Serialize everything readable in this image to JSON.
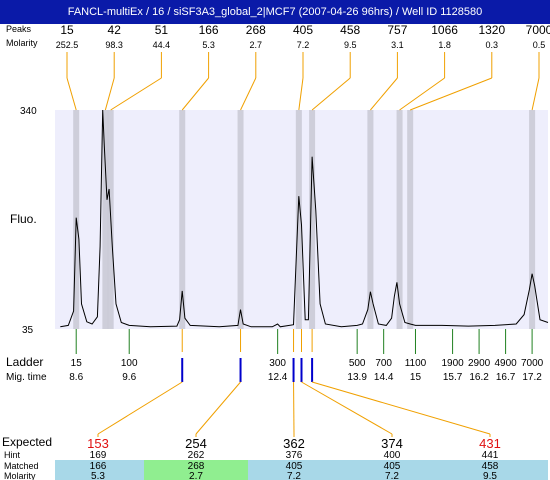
{
  "title": "FANCL-multiEx / 16 / siSF3A3_global_2|MCF7 (2007-04-26 96hrs) / Well ID 1128580",
  "labels": {
    "peaks": "Peaks",
    "molarity": "Molarity",
    "fluo": "Fluo.",
    "ladder": "Ladder",
    "mig_time": "Mig. time",
    "expected": "Expected",
    "hint": "Hint",
    "matched": "Matched",
    "molarity_bottom": "Molarity"
  },
  "colors": {
    "title_bg": "#0a1aa8",
    "plot_bg": "#eeeefc",
    "band": "#c8c8d4",
    "orange": "#f0a000",
    "green": "#208020",
    "blue": "#0000cc",
    "red": "#e01010",
    "table_blue": "#a8d8e8",
    "table_green": "#90ee90"
  },
  "chart_data": {
    "type": "line",
    "ylabel": "Fluo.",
    "ylim": [
      35,
      340
    ],
    "y_ticks": [
      35,
      340
    ],
    "top_peaks": [
      {
        "size": "15",
        "molarity": "252.5",
        "time": 8.6
      },
      {
        "size": "42",
        "molarity": "98.3",
        "time": 9.15
      },
      {
        "size": "51",
        "molarity": "44.4",
        "time": 9.25
      },
      {
        "size": "166",
        "molarity": "5.3",
        "time": 10.6
      },
      {
        "size": "268",
        "molarity": "2.7",
        "time": 11.7
      },
      {
        "size": "405",
        "molarity": "7.2",
        "time": 12.8
      },
      {
        "size": "458",
        "molarity": "9.5",
        "time": 13.05
      },
      {
        "size": "757",
        "molarity": "3.1",
        "time": 14.15
      },
      {
        "size": "1066",
        "molarity": "1.8",
        "time": 14.7
      },
      {
        "size": "1320",
        "molarity": "0.3",
        "time": 14.9
      },
      {
        "size": "7000",
        "molarity": "0.5",
        "time": 17.2
      }
    ],
    "ladder": [
      {
        "size": "15",
        "time": 8.6
      },
      {
        "size": "100",
        "time": 9.6
      },
      {
        "size": "300",
        "time": 12.4
      },
      {
        "size": "500",
        "time": 13.9
      },
      {
        "size": "700",
        "time": 14.4
      },
      {
        "size": "1100",
        "time": 15
      },
      {
        "size": "1900",
        "time": 15.7
      },
      {
        "size": "2900",
        "time": 16.2
      },
      {
        "size": "4900",
        "time": 16.7
      },
      {
        "size": "7000",
        "time": 17.2
      }
    ],
    "ladder_time_labels": [
      "8.6",
      "9.6",
      "12.4",
      "13.9",
      "14.4",
      "15",
      "15.7",
      "16.2",
      "16.7",
      "17.2"
    ],
    "blue_markers": [
      10.6,
      11.7,
      12.7,
      12.85,
      13.05
    ],
    "trace": [
      [
        8.3,
        38
      ],
      [
        8.45,
        40
      ],
      [
        8.55,
        60
      ],
      [
        8.6,
        190
      ],
      [
        8.65,
        160
      ],
      [
        8.7,
        70
      ],
      [
        8.8,
        45
      ],
      [
        8.9,
        42
      ],
      [
        9.0,
        52
      ],
      [
        9.05,
        150
      ],
      [
        9.1,
        340
      ],
      [
        9.13,
        290
      ],
      [
        9.18,
        215
      ],
      [
        9.22,
        230
      ],
      [
        9.28,
        150
      ],
      [
        9.35,
        70
      ],
      [
        9.45,
        44
      ],
      [
        9.6,
        40
      ],
      [
        10.0,
        38
      ],
      [
        10.5,
        39
      ],
      [
        10.55,
        48
      ],
      [
        10.6,
        88
      ],
      [
        10.65,
        50
      ],
      [
        10.75,
        40
      ],
      [
        11.3,
        38
      ],
      [
        11.65,
        40
      ],
      [
        11.7,
        62
      ],
      [
        11.75,
        42
      ],
      [
        11.9,
        38
      ],
      [
        12.3,
        38
      ],
      [
        12.4,
        42
      ],
      [
        12.45,
        38
      ],
      [
        12.7,
        41
      ],
      [
        12.8,
        220
      ],
      [
        12.85,
        180
      ],
      [
        12.92,
        48
      ],
      [
        12.98,
        48
      ],
      [
        13.05,
        275
      ],
      [
        13.12,
        200
      ],
      [
        13.2,
        70
      ],
      [
        13.3,
        42
      ],
      [
        13.6,
        38
      ],
      [
        13.9,
        40
      ],
      [
        14.0,
        42
      ],
      [
        14.1,
        62
      ],
      [
        14.15,
        87
      ],
      [
        14.2,
        70
      ],
      [
        14.3,
        42
      ],
      [
        14.45,
        40
      ],
      [
        14.55,
        50
      ],
      [
        14.6,
        80
      ],
      [
        14.65,
        100
      ],
      [
        14.7,
        70
      ],
      [
        14.8,
        44
      ],
      [
        14.9,
        42
      ],
      [
        15.0,
        40
      ],
      [
        15.5,
        40
      ],
      [
        16.0,
        39
      ],
      [
        16.5,
        40
      ],
      [
        16.9,
        42
      ],
      [
        17.05,
        55
      ],
      [
        17.15,
        90
      ],
      [
        17.2,
        112
      ],
      [
        17.25,
        95
      ],
      [
        17.35,
        48
      ],
      [
        17.5,
        44
      ]
    ]
  },
  "expected_table": [
    {
      "expected": "153",
      "hint": "169",
      "matched": "166",
      "molarity": "5.3",
      "highlight": "red",
      "bg": "blue"
    },
    {
      "expected": "254",
      "hint": "262",
      "matched": "268",
      "molarity": "2.7",
      "highlight": "black",
      "bg": "green"
    },
    {
      "expected": "362",
      "hint": "376",
      "matched": "405",
      "molarity": "7.2",
      "highlight": "black",
      "bg": "blue"
    },
    {
      "expected": "374",
      "hint": "400",
      "matched": "405",
      "molarity": "7.2",
      "highlight": "black",
      "bg": "blue"
    },
    {
      "expected": "431",
      "hint": "441",
      "matched": "458",
      "molarity": "9.5",
      "highlight": "red",
      "bg": "blue"
    }
  ]
}
